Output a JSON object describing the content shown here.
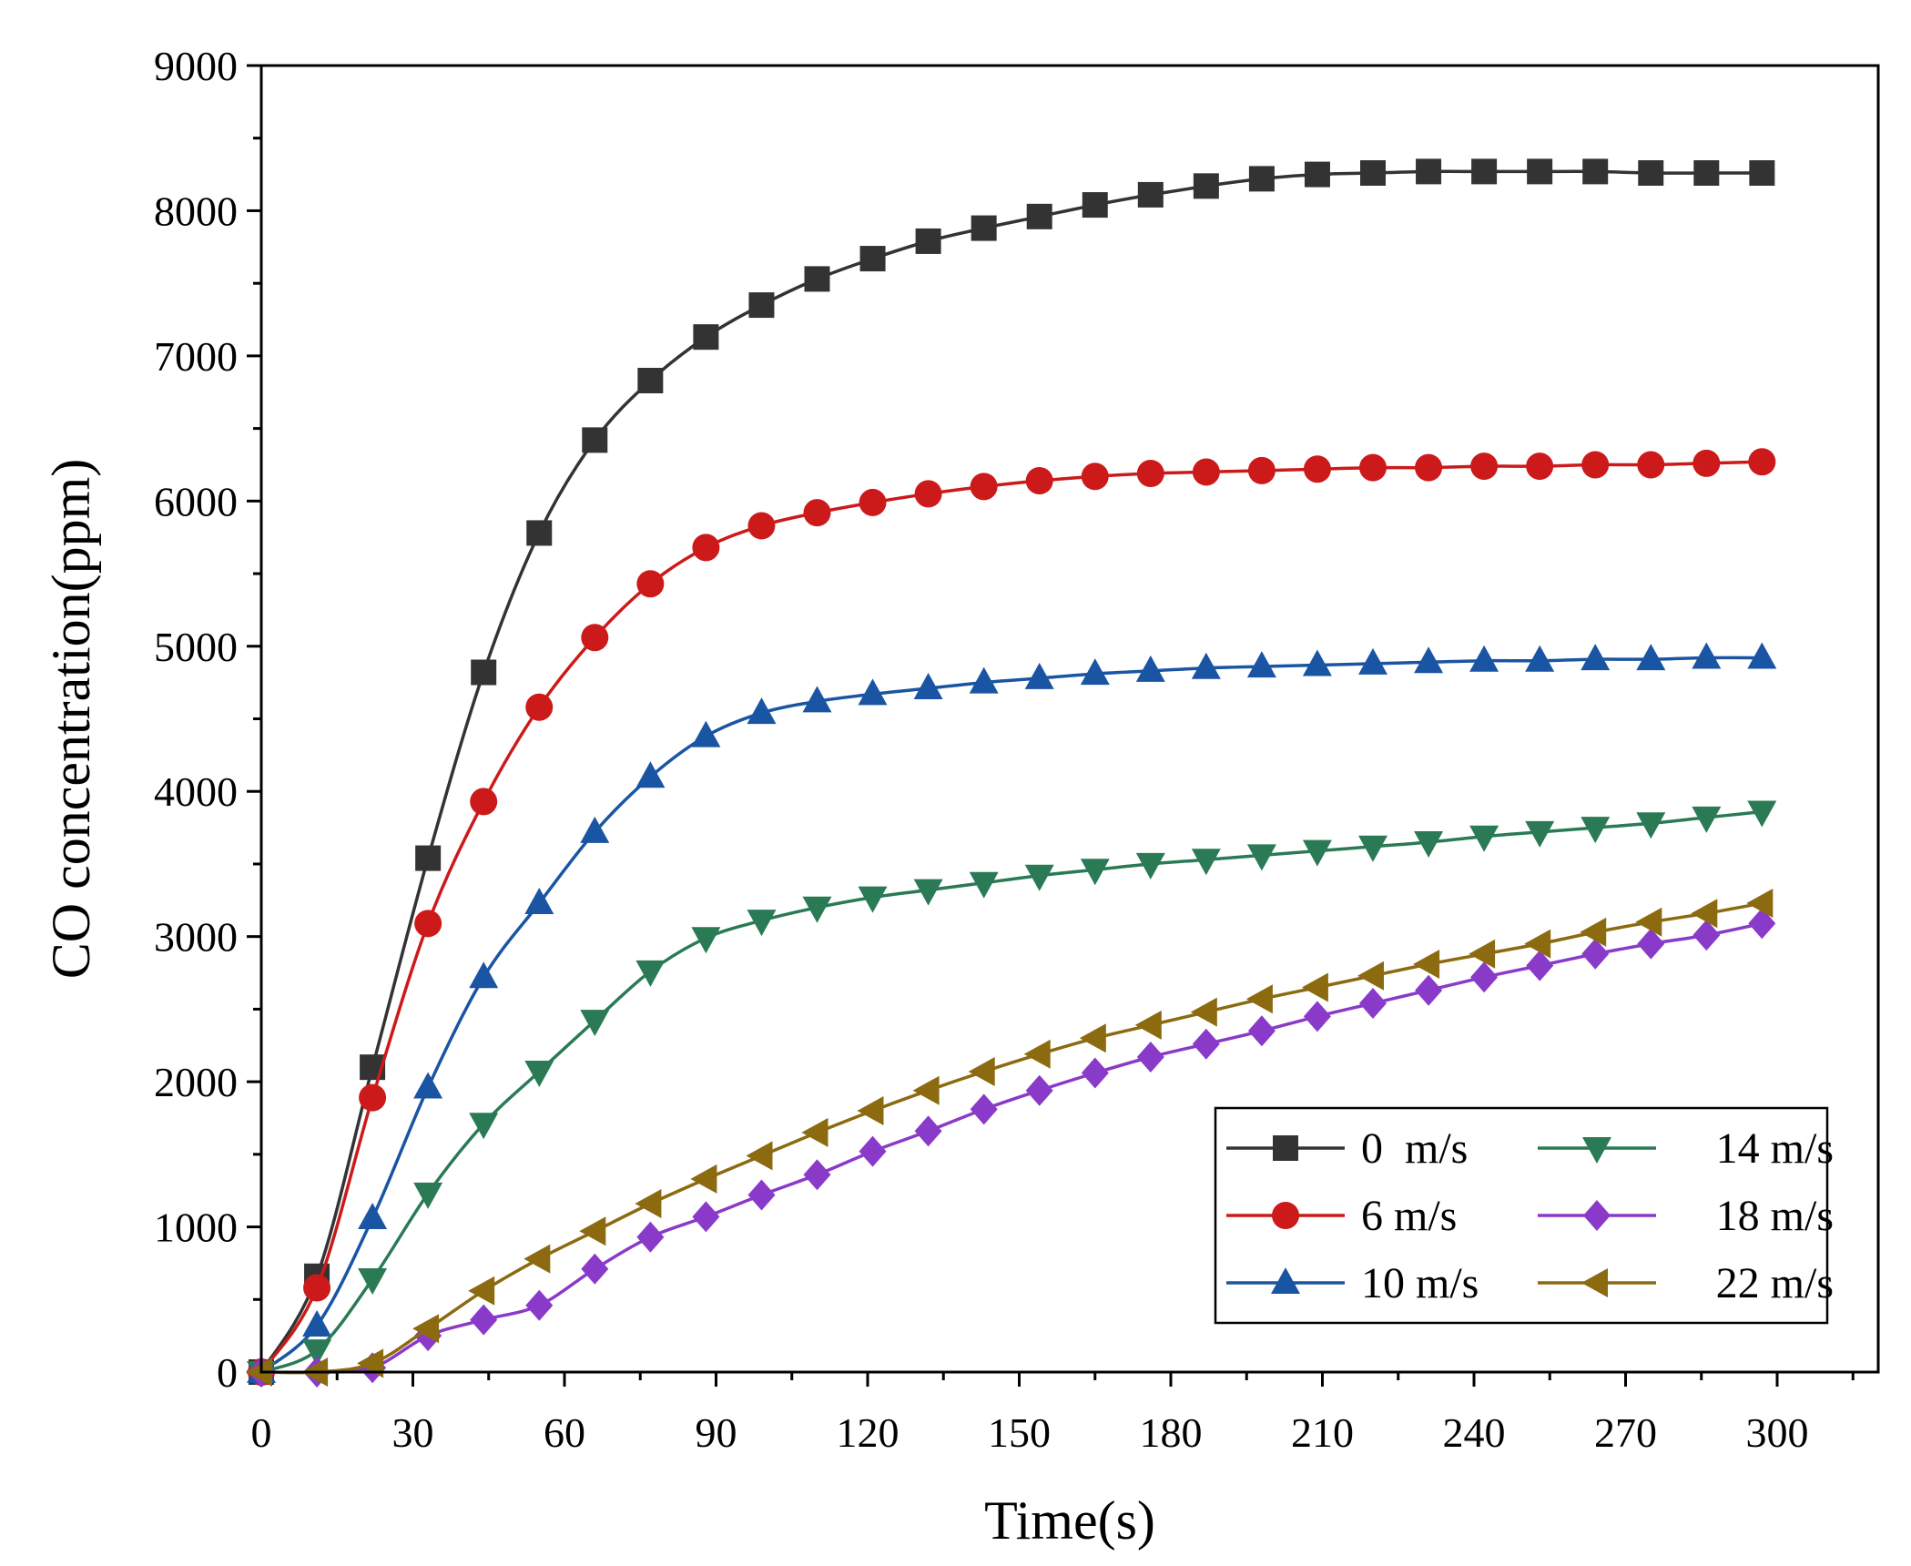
{
  "chart_data": {
    "type": "line",
    "title": "",
    "xlabel": "Time(s)",
    "ylabel": "CO concentration(ppm)",
    "xlim": [
      0,
      320
    ],
    "ylim": [
      0,
      9000
    ],
    "x_ticks": [
      0,
      30,
      60,
      90,
      120,
      150,
      180,
      210,
      240,
      270,
      300
    ],
    "x_tick_labels": [
      "0",
      "30",
      "60",
      "90",
      "120",
      "150",
      "180",
      "210",
      "240",
      "270",
      "300"
    ],
    "y_ticks": [
      0,
      1000,
      2000,
      3000,
      4000,
      5000,
      6000,
      7000,
      8000,
      9000
    ],
    "y_tick_labels": [
      "0",
      "1000",
      "2000",
      "3000",
      "4000",
      "5000",
      "6000",
      "7000",
      "8000",
      "9000"
    ],
    "grid": false,
    "legend_position": "bottom-right",
    "x": [
      0,
      11,
      22,
      33,
      44,
      55,
      66,
      77,
      88,
      99,
      110,
      121,
      132,
      143,
      154,
      165,
      176,
      187,
      198,
      209,
      220,
      231,
      242,
      253,
      264,
      275,
      286,
      297
    ],
    "series": [
      {
        "name": "0  m/s",
        "color": "#333333",
        "marker": "square",
        "values": [
          0,
          660,
          2100,
          3540,
          4820,
          5780,
          6420,
          6830,
          7130,
          7350,
          7530,
          7670,
          7790,
          7880,
          7960,
          8040,
          8110,
          8170,
          8220,
          8250,
          8260,
          8270,
          8270,
          8270,
          8270,
          8260,
          8260,
          8260
        ]
      },
      {
        "name": "6 m/s",
        "color": "#cc1a1a",
        "marker": "circle",
        "values": [
          0,
          580,
          1890,
          3090,
          3930,
          4580,
          5060,
          5430,
          5680,
          5830,
          5920,
          5990,
          6050,
          6100,
          6140,
          6170,
          6190,
          6200,
          6210,
          6220,
          6230,
          6230,
          6240,
          6240,
          6250,
          6250,
          6260,
          6270
        ]
      },
      {
        "name": "10 m/s",
        "color": "#1a55a3",
        "marker": "triangle-up",
        "values": [
          0,
          320,
          1060,
          1960,
          2720,
          3230,
          3720,
          4100,
          4380,
          4540,
          4620,
          4670,
          4710,
          4750,
          4780,
          4810,
          4830,
          4850,
          4860,
          4870,
          4880,
          4890,
          4900,
          4900,
          4910,
          4910,
          4920,
          4920
        ]
      },
      {
        "name": "14 m/s",
        "color": "#2a7a55",
        "marker": "triangle-down",
        "values": [
          0,
          150,
          640,
          1230,
          1710,
          2070,
          2420,
          2760,
          2990,
          3110,
          3200,
          3270,
          3320,
          3370,
          3420,
          3460,
          3500,
          3530,
          3560,
          3590,
          3620,
          3650,
          3690,
          3720,
          3750,
          3780,
          3820,
          3860
        ]
      },
      {
        "name": "18 m/s",
        "color": "#8a3ac8",
        "marker": "diamond",
        "values": [
          0,
          0,
          30,
          250,
          360,
          460,
          710,
          930,
          1070,
          1220,
          1360,
          1520,
          1660,
          1810,
          1940,
          2060,
          2170,
          2260,
          2350,
          2450,
          2540,
          2630,
          2720,
          2800,
          2880,
          2950,
          3010,
          3090
        ]
      },
      {
        "name": "22 m/s",
        "color": "#8c6a10",
        "marker": "triangle-left",
        "values": [
          0,
          0,
          60,
          300,
          560,
          780,
          970,
          1160,
          1330,
          1490,
          1650,
          1800,
          1940,
          2070,
          2190,
          2300,
          2390,
          2480,
          2570,
          2650,
          2730,
          2810,
          2880,
          2950,
          3030,
          3100,
          3160,
          3230
        ]
      }
    ]
  }
}
